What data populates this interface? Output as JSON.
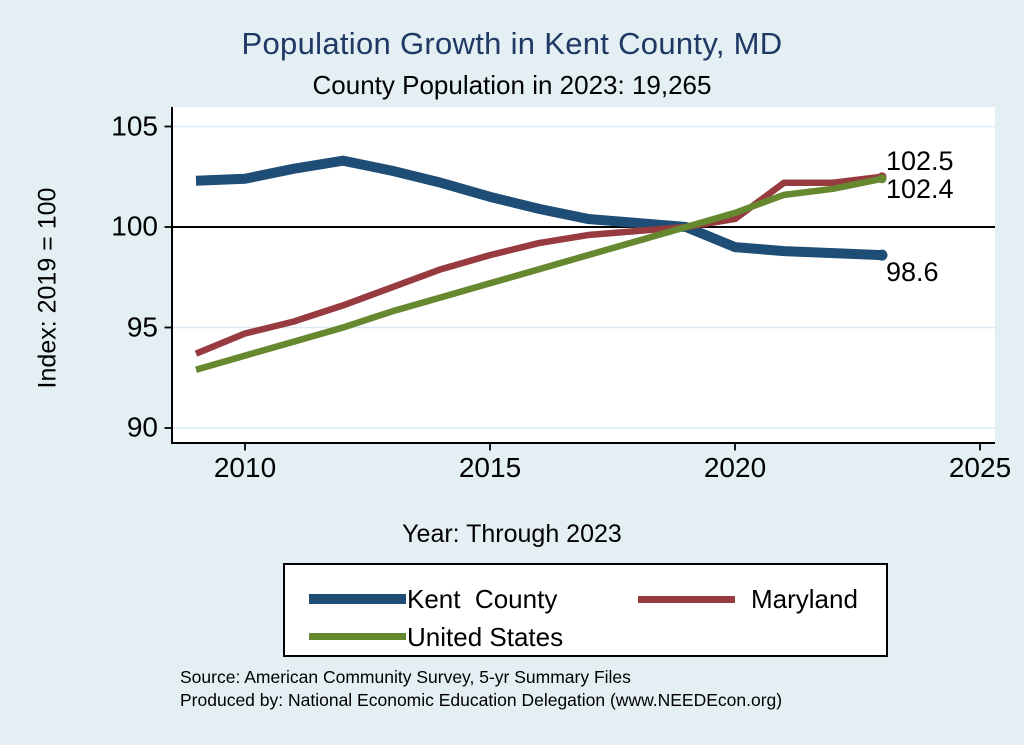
{
  "title": "Population Growth in Kent County, MD",
  "subtitle": "County Population in 2023: 19,265",
  "colors": {
    "background": "#E3EFF3",
    "title": "#1F3864",
    "grid": "#DCE9F2",
    "axis": "#000000",
    "reference_line_color": "#000000",
    "plot_background": "#FFFFFF"
  },
  "y_axis": {
    "title": "Index: 2019 = 100",
    "ticks": [
      90,
      95,
      100,
      105
    ]
  },
  "x_axis": {
    "title": "Year: Through 2023",
    "ticks": [
      2010,
      2015,
      2020,
      2025
    ]
  },
  "reference_line": 100,
  "source_lines": [
    "Source: American Community Survey, 5-yr Summary Files",
    "Produced by: National Economic Education Delegation (www.NEEDEcon.org)"
  ],
  "chart_data": {
    "type": "line",
    "title": "Population Growth in Kent County, MD",
    "subtitle": "County Population in 2023: 19,265",
    "xlabel": "Year: Through 2023",
    "ylabel": "Index: 2019 = 100",
    "ylim": [
      89.4,
      106
    ],
    "xlim": [
      2008.5,
      2025.3
    ],
    "grid": true,
    "legend_position": "bottom",
    "x": [
      2009,
      2010,
      2011,
      2012,
      2013,
      2014,
      2015,
      2016,
      2017,
      2018,
      2019,
      2020,
      2021,
      2022,
      2023
    ],
    "series": [
      {
        "name": "Kent  County",
        "color": "#1E4D75",
        "width": 10,
        "marker_radius": 5.5,
        "end_label": "98.6",
        "values": [
          102.3,
          102.4,
          102.9,
          103.3,
          102.8,
          102.2,
          101.5,
          100.9,
          100.4,
          100.2,
          100.0,
          99.0,
          98.8,
          98.7,
          98.6
        ]
      },
      {
        "name": "Maryland",
        "color": "#973B40",
        "width": 6.5,
        "marker_radius": 4.5,
        "end_label": "102.5",
        "values": [
          93.7,
          94.7,
          95.3,
          96.1,
          97.0,
          97.9,
          98.6,
          99.2,
          99.6,
          99.8,
          100.0,
          100.4,
          102.2,
          102.2,
          102.5
        ]
      },
      {
        "name": "United States",
        "color": "#66882F",
        "width": 6.5,
        "marker_radius": 4.5,
        "end_label": "102.4",
        "values": [
          92.9,
          93.6,
          94.3,
          95.0,
          95.8,
          96.5,
          97.2,
          97.9,
          98.6,
          99.3,
          100.0,
          100.7,
          101.6,
          101.9,
          102.4
        ]
      }
    ]
  }
}
